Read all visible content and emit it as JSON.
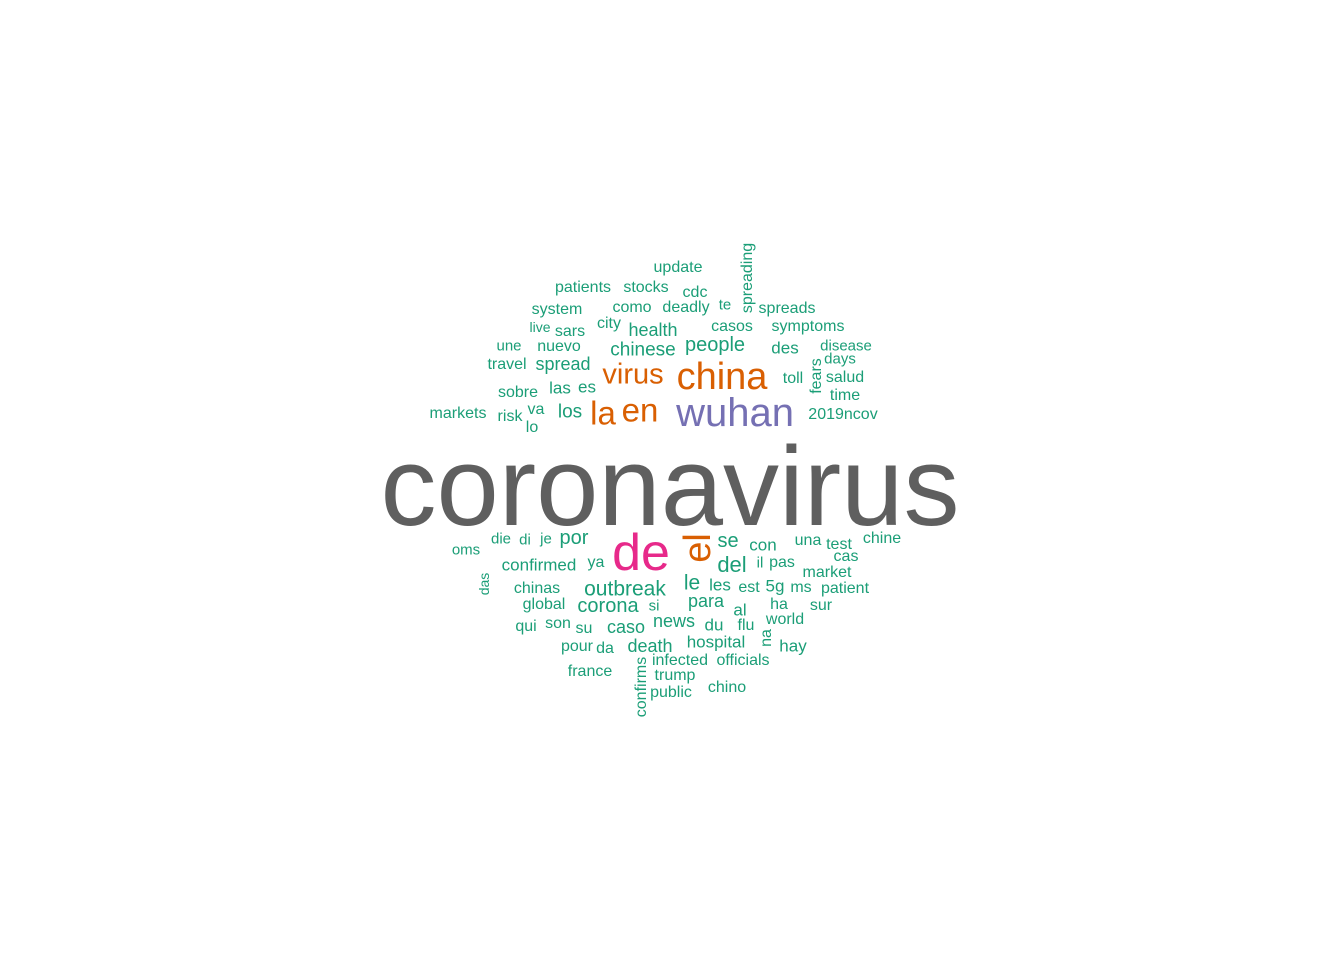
{
  "colors": {
    "gray": "#5f5f5f",
    "teal": "#1b9e77",
    "orange": "#d95f02",
    "purple": "#7570b3",
    "magenta": "#e7298a"
  },
  "words": [
    {
      "text": "coronavirus",
      "color": "gray"
    },
    {
      "text": "wuhan",
      "color": "purple"
    },
    {
      "text": "china",
      "color": "orange"
    },
    {
      "text": "virus",
      "color": "orange"
    },
    {
      "text": "la",
      "color": "orange"
    },
    {
      "text": "en",
      "color": "orange"
    },
    {
      "text": "el",
      "color": "orange"
    },
    {
      "text": "de",
      "color": "magenta"
    },
    {
      "text": "update",
      "color": "teal"
    },
    {
      "text": "spreading",
      "color": "teal"
    },
    {
      "text": "patients",
      "color": "teal"
    },
    {
      "text": "stocks",
      "color": "teal"
    },
    {
      "text": "cdc",
      "color": "teal"
    },
    {
      "text": "system",
      "color": "teal"
    },
    {
      "text": "como",
      "color": "teal"
    },
    {
      "text": "deadly",
      "color": "teal"
    },
    {
      "text": "te",
      "color": "teal"
    },
    {
      "text": "spreads",
      "color": "teal"
    },
    {
      "text": "live",
      "color": "teal"
    },
    {
      "text": "sars",
      "color": "teal"
    },
    {
      "text": "city",
      "color": "teal"
    },
    {
      "text": "health",
      "color": "teal"
    },
    {
      "text": "casos",
      "color": "teal"
    },
    {
      "text": "symptoms",
      "color": "teal"
    },
    {
      "text": "une",
      "color": "teal"
    },
    {
      "text": "nuevo",
      "color": "teal"
    },
    {
      "text": "chinese",
      "color": "teal"
    },
    {
      "text": "people",
      "color": "teal"
    },
    {
      "text": "des",
      "color": "teal"
    },
    {
      "text": "disease",
      "color": "teal"
    },
    {
      "text": "days",
      "color": "teal"
    },
    {
      "text": "travel",
      "color": "teal"
    },
    {
      "text": "spread",
      "color": "teal"
    },
    {
      "text": "fears",
      "color": "teal"
    },
    {
      "text": "salud",
      "color": "teal"
    },
    {
      "text": "toll",
      "color": "teal"
    },
    {
      "text": "sobre",
      "color": "teal"
    },
    {
      "text": "las",
      "color": "teal"
    },
    {
      "text": "es",
      "color": "teal"
    },
    {
      "text": "time",
      "color": "teal"
    },
    {
      "text": "markets",
      "color": "teal"
    },
    {
      "text": "risk",
      "color": "teal"
    },
    {
      "text": "va",
      "color": "teal"
    },
    {
      "text": "los",
      "color": "teal"
    },
    {
      "text": "2019ncov",
      "color": "teal"
    },
    {
      "text": "lo",
      "color": "teal"
    },
    {
      "text": "die",
      "color": "teal"
    },
    {
      "text": "di",
      "color": "teal"
    },
    {
      "text": "je",
      "color": "teal"
    },
    {
      "text": "por",
      "color": "teal"
    },
    {
      "text": "se",
      "color": "teal"
    },
    {
      "text": "una",
      "color": "teal"
    },
    {
      "text": "test",
      "color": "teal"
    },
    {
      "text": "chine",
      "color": "teal"
    },
    {
      "text": "oms",
      "color": "teal"
    },
    {
      "text": "con",
      "color": "teal"
    },
    {
      "text": "cas",
      "color": "teal"
    },
    {
      "text": "confirmed",
      "color": "teal"
    },
    {
      "text": "ya",
      "color": "teal"
    },
    {
      "text": "del",
      "color": "teal"
    },
    {
      "text": "il",
      "color": "teal"
    },
    {
      "text": "pas",
      "color": "teal"
    },
    {
      "text": "market",
      "color": "teal"
    },
    {
      "text": "das",
      "color": "teal"
    },
    {
      "text": "chinas",
      "color": "teal"
    },
    {
      "text": "outbreak",
      "color": "teal"
    },
    {
      "text": "le",
      "color": "teal"
    },
    {
      "text": "les",
      "color": "teal"
    },
    {
      "text": "est",
      "color": "teal"
    },
    {
      "text": "5g",
      "color": "teal"
    },
    {
      "text": "ms",
      "color": "teal"
    },
    {
      "text": "patient",
      "color": "teal"
    },
    {
      "text": "global",
      "color": "teal"
    },
    {
      "text": "corona",
      "color": "teal"
    },
    {
      "text": "si",
      "color": "teal"
    },
    {
      "text": "para",
      "color": "teal"
    },
    {
      "text": "al",
      "color": "teal"
    },
    {
      "text": "ha",
      "color": "teal"
    },
    {
      "text": "sur",
      "color": "teal"
    },
    {
      "text": "qui",
      "color": "teal"
    },
    {
      "text": "son",
      "color": "teal"
    },
    {
      "text": "su",
      "color": "teal"
    },
    {
      "text": "caso",
      "color": "teal"
    },
    {
      "text": "news",
      "color": "teal"
    },
    {
      "text": "du",
      "color": "teal"
    },
    {
      "text": "flu",
      "color": "teal"
    },
    {
      "text": "world",
      "color": "teal"
    },
    {
      "text": "na",
      "color": "teal"
    },
    {
      "text": "hospital",
      "color": "teal"
    },
    {
      "text": "hay",
      "color": "teal"
    },
    {
      "text": "pour",
      "color": "teal"
    },
    {
      "text": "da",
      "color": "teal"
    },
    {
      "text": "death",
      "color": "teal"
    },
    {
      "text": "infected",
      "color": "teal"
    },
    {
      "text": "officials",
      "color": "teal"
    },
    {
      "text": "france",
      "color": "teal"
    },
    {
      "text": "trump",
      "color": "teal"
    },
    {
      "text": "chino",
      "color": "teal"
    },
    {
      "text": "public",
      "color": "teal"
    },
    {
      "text": "confirms",
      "color": "teal"
    }
  ]
}
